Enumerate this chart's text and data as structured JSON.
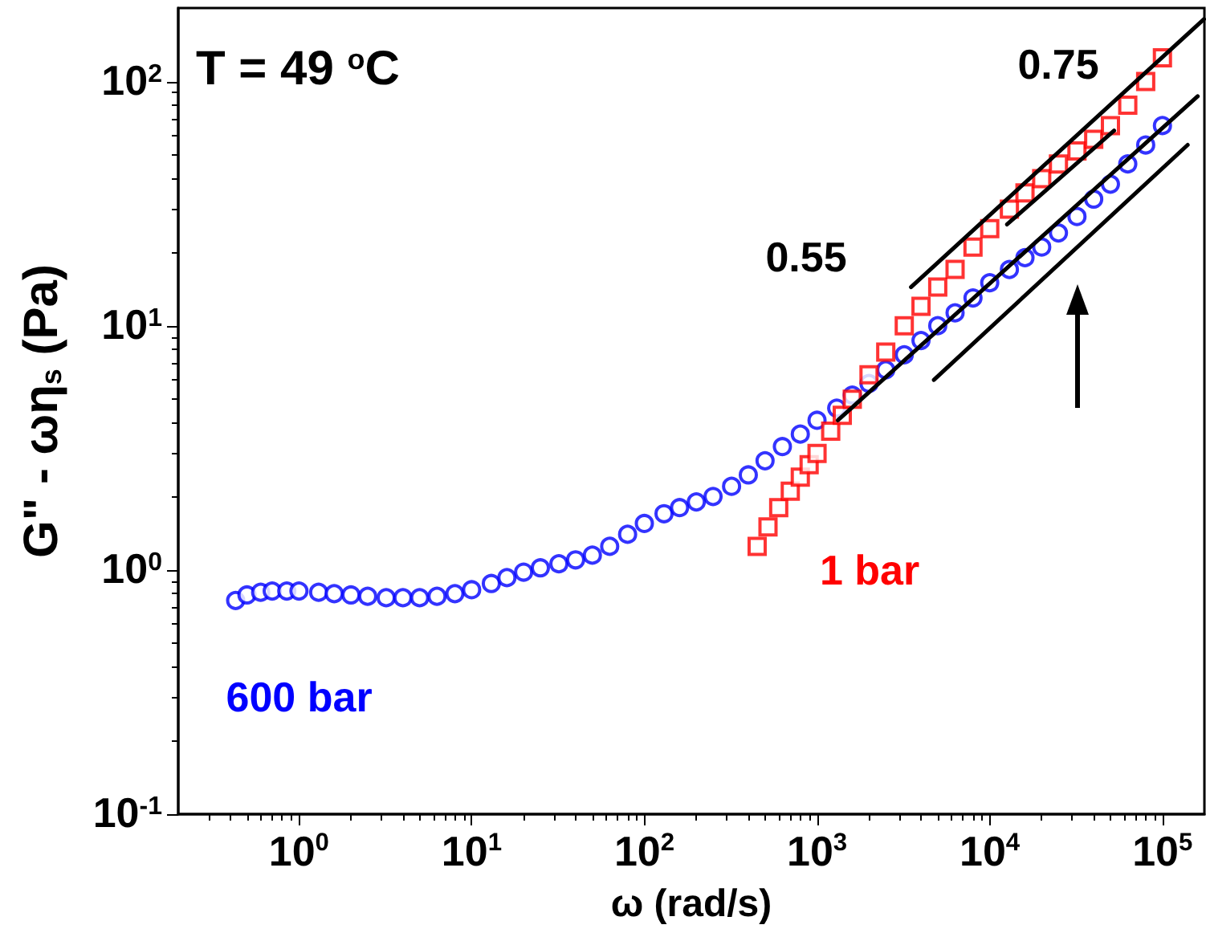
{
  "chart_data": {
    "type": "scatter",
    "title": "T = 49 $^{o}$C",
    "xlabel": "ω (rad/s)",
    "ylabel": "G\" - ωη$_{s}$ (Pa)",
    "log": "xy",
    "grid": false,
    "legend": false,
    "xlim": [
      0.2,
      175000
    ],
    "ylim": [
      0.1,
      200
    ],
    "xticks": [
      {
        "value": 1,
        "label": "10$^{0}$"
      },
      {
        "value": 10,
        "label": "10$^{1}$"
      },
      {
        "value": 100,
        "label": "10$^{2}$"
      },
      {
        "value": 1000,
        "label": "10$^{3}$"
      },
      {
        "value": 10000,
        "label": "10$^{4}$"
      },
      {
        "value": 100000,
        "label": "10$^{5}$"
      }
    ],
    "yticks": [
      {
        "value": 0.1,
        "label": "10$^{-1}$"
      },
      {
        "value": 1,
        "label": "10$^{0}$"
      },
      {
        "value": 10,
        "label": "10$^{1}$"
      },
      {
        "value": 100,
        "label": "10$^{2}$"
      }
    ],
    "annotations": [
      "0.75",
      "0.55"
    ],
    "series": [
      {
        "name": "600 bar",
        "color": "#0000ff",
        "marker": "circle",
        "x": [
          0.43,
          0.5,
          0.6,
          0.7,
          0.85,
          1,
          1.3,
          1.6,
          2,
          2.5,
          3.2,
          4,
          5,
          6.3,
          8,
          10,
          13,
          16,
          20,
          25,
          32,
          40,
          50,
          63,
          80,
          100,
          130,
          160,
          200,
          250,
          320,
          400,
          500,
          630,
          800,
          1000,
          1300,
          1600,
          2000,
          2500,
          3200,
          4000,
          5000,
          6300,
          8000,
          10000,
          13000,
          16000,
          20000,
          25000,
          32000,
          40000,
          50000,
          63000,
          80000,
          100000
        ],
        "values": [
          0.75,
          0.79,
          0.81,
          0.82,
          0.82,
          0.82,
          0.81,
          0.8,
          0.79,
          0.78,
          0.77,
          0.77,
          0.77,
          0.78,
          0.8,
          0.83,
          0.88,
          0.93,
          0.98,
          1.02,
          1.06,
          1.1,
          1.15,
          1.25,
          1.4,
          1.55,
          1.7,
          1.8,
          1.9,
          2.0,
          2.2,
          2.45,
          2.8,
          3.2,
          3.6,
          4.1,
          4.6,
          5.2,
          5.8,
          6.6,
          7.6,
          8.7,
          10,
          11.3,
          13,
          15,
          17,
          19,
          21,
          24,
          28,
          33,
          38,
          46,
          55,
          66
        ]
      },
      {
        "name": "1 bar",
        "color": "#ff0000",
        "marker": "square",
        "x": [
          450,
          520,
          600,
          700,
          800,
          900,
          1000,
          1200,
          1400,
          1600,
          2000,
          2500,
          3200,
          4000,
          5000,
          6300,
          8000,
          10000,
          13000,
          16000,
          20000,
          25000,
          32000,
          40000,
          50000,
          63000,
          80000,
          100000
        ],
        "values": [
          1.25,
          1.5,
          1.8,
          2.1,
          2.4,
          2.7,
          3.0,
          3.7,
          4.3,
          5.0,
          6.3,
          7.8,
          10,
          12,
          14.4,
          17,
          21,
          25,
          30,
          35,
          40,
          46,
          52,
          58,
          66,
          80,
          100,
          125
        ]
      },
      {
        "type": "line",
        "color": "#000000",
        "marker": "none",
        "x": [
          3500,
          174000
        ],
        "values": [
          14.4,
          180
        ]
      },
      {
        "type": "line",
        "color": "#000000",
        "marker": "none",
        "x": [
          12600,
          52500
        ],
        "values": [
          26,
          63
        ]
      },
      {
        "type": "line",
        "color": "#000000",
        "marker": "none",
        "x": [
          1320,
          160000
        ],
        "values": [
          4.1,
          87
        ]
      },
      {
        "type": "line",
        "color": "#000000",
        "marker": "none",
        "x": [
          4750,
          140000
        ],
        "values": [
          6.0,
          55
        ]
      }
    ]
  }
}
